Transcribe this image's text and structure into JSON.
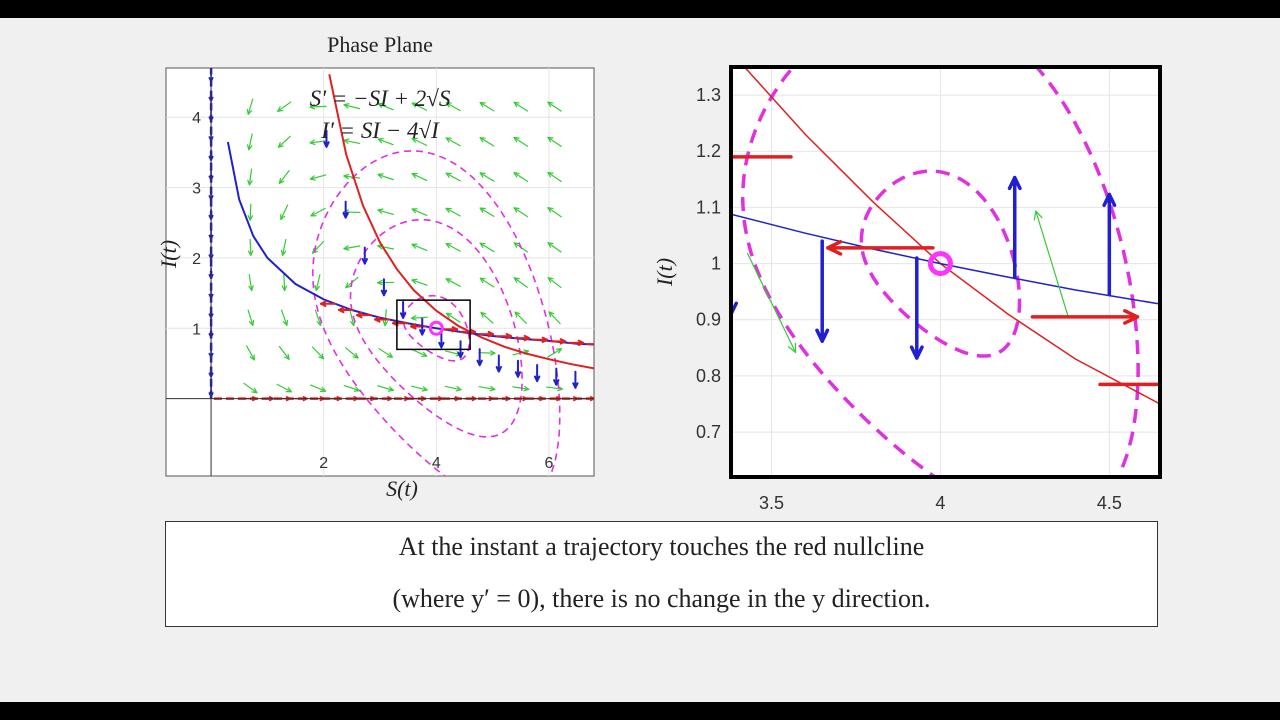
{
  "colors": {
    "u_nullcline": "#e02020",
    "v_nullcline": "#2020d0",
    "trajectory": "#e030e0",
    "direction_field": "#33cc33",
    "equilibrium": "#ff33ff"
  },
  "chart_data": [
    {
      "type": "line",
      "title": "Phase Plane",
      "xlabel": "S(t)",
      "ylabel": "I(t)",
      "xlim": [
        -0.8,
        6.8
      ],
      "ylim": [
        -1.1,
        4.7
      ],
      "xticks": [
        "2",
        "4",
        "6"
      ],
      "yticks": [
        "1",
        "2",
        "3",
        "4"
      ],
      "grid": true,
      "equations": [
        "S' = −SI + 2√S",
        "I' = SI − 4√I"
      ],
      "equilibrium": {
        "x": 4,
        "y": 1
      },
      "zoom_box": {
        "x": [
          3.3,
          4.6
        ],
        "y": [
          0.7,
          1.4
        ]
      },
      "series": [
        {
          "x": [
            2.1,
            2.4,
            2.7,
            3.0,
            3.3,
            3.6,
            4.0,
            4.4,
            4.8,
            5.2,
            5.6,
            6.0,
            6.4,
            6.8
          ],
          "y": [
            4.61,
            3.47,
            2.74,
            2.22,
            1.84,
            1.54,
            1.25,
            1.03,
            0.87,
            0.74,
            0.64,
            0.56,
            0.49,
            0.43
          ]
        },
        {
          "x": [
            0.3,
            0.5,
            0.75,
            1.0,
            1.5,
            2.0,
            2.5,
            3.0,
            3.5,
            4.0,
            4.5,
            5.0,
            5.5,
            6.0,
            6.5,
            6.8
          ],
          "y": [
            3.65,
            2.83,
            2.31,
            2.0,
            1.63,
            1.41,
            1.26,
            1.15,
            1.07,
            1.0,
            0.94,
            0.89,
            0.85,
            0.82,
            0.78,
            0.77
          ]
        },
        {
          "x": [
            0.05,
            2.0,
            4.0,
            6.0,
            6.8
          ],
          "y": [
            0,
            0,
            0,
            0,
            0
          ]
        },
        {
          "x": [
            0,
            0,
            0,
            0
          ],
          "y": [
            0,
            1.5,
            3.0,
            4.7
          ]
        }
      ]
    },
    {
      "type": "line",
      "xlabel": "",
      "ylabel": "I(t)",
      "xlim": [
        3.38,
        4.65
      ],
      "ylim": [
        0.62,
        1.35
      ],
      "xticks": [
        "3.5",
        "4",
        "4.5"
      ],
      "yticks": [
        "0.7",
        "0.8",
        "0.9",
        "1",
        "1.1",
        "1.2",
        "1.3"
      ],
      "grid": true,
      "equilibrium": {
        "x": 4,
        "y": 1
      },
      "series": [
        {
          "x": [
            3.42,
            3.6,
            3.8,
            4.0,
            4.2,
            4.4,
            4.65
          ],
          "y": [
            1.35,
            1.23,
            1.11,
            1.0,
            0.91,
            0.83,
            0.75
          ]
        },
        {
          "x": [
            3.38,
            3.6,
            3.8,
            4.0,
            4.2,
            4.4,
            4.65
          ],
          "y": [
            1.088,
            1.054,
            1.026,
            1.0,
            0.976,
            0.953,
            0.928
          ]
        }
      ]
    }
  ],
  "caption": {
    "line1": "At the instant a trajectory touches the red nullcline",
    "line2": "(where y′ = 0), there is no change in the y direction."
  }
}
